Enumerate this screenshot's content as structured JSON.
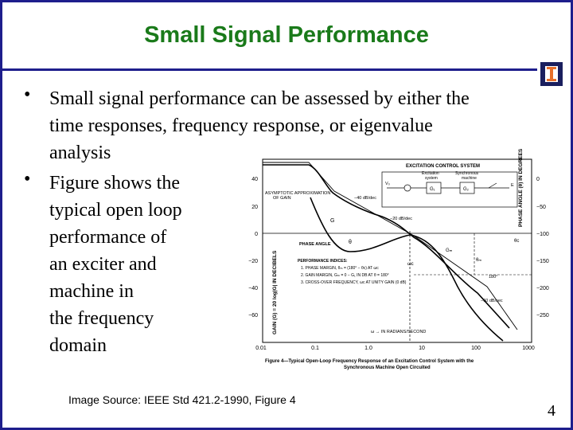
{
  "slide": {
    "title": "Small Signal Performance",
    "bullets": [
      {
        "lines": [
          "Small signal performance can be assessed by either the",
          "time responses, frequency response, or eigenvalue",
          "analysis"
        ]
      },
      {
        "lines": [
          "Figure shows the",
          "typical open loop",
          "performance of",
          "an exciter and",
          "machine in",
          "the frequency",
          "domain"
        ]
      }
    ],
    "source": "Image Source: IEEE Std 421.2-1990, Figure 4",
    "page_number": "4"
  },
  "figure": {
    "block_diagram": {
      "title": "EXCITATION CONTROL SYSTEM",
      "excitation_label": [
        "Excitation",
        "system"
      ],
      "machine_label": [
        "Synchronous",
        "machine"
      ],
      "input_label": "V₀",
      "output_label": "E",
      "g1": "G₁",
      "g2": "G₂"
    },
    "annotations": {
      "asymptotic": [
        "ASYMPTOTIC APPROXIMATION",
        "OF GAIN"
      ],
      "slope1": "−40 dB/dec",
      "slope2": "−20 dB/dec",
      "slope3": "−60 dB/sec",
      "phase_angle": "PHASE ANGLE",
      "theta": "θ",
      "g_label": "G",
      "gm": "Gₘ",
      "theta_m": "θₘ",
      "theta_c": "θc",
      "omega_c": "ωc",
      "deg180": "180°",
      "performance": [
        "PERFORMANCE INDICES:",
        "1. PHASE MARGIN,  θₘ = (180° − θc) AT ωc",
        "2. GAIN MARGIN,  Gₘ = 0 − G₁ IN DB AT θ = 180°",
        "3. CROSS-OVER FREQUENCY, ωc AT UNITY GAIN (0 dB)"
      ],
      "omega_units": "ω → IN RADIANS/SECOND",
      "left_axis": "GAIN (G) = 20 log|G| IN DECIBELS",
      "right_axis": "PHASE ANGLE (θ) IN DEGREES"
    },
    "left_ticks": [
      "40",
      "20",
      "0",
      "−20",
      "−40",
      "−60"
    ],
    "right_ticks": [
      "0",
      "−50",
      "−100",
      "−150",
      "−200",
      "−250"
    ],
    "x_ticks": [
      "0.01",
      "0.1",
      "1.0",
      "10",
      "100",
      "1000"
    ],
    "caption": [
      "Figure 4—Typical Open-Loop Frequency Response of an Excitation Control System with the",
      "Synchronous Machine Open Circuited"
    ]
  },
  "colors": {
    "title": "#1a7a1a",
    "border": "#1e1e8c",
    "logo_bg": "#1a1f5e",
    "logo_accent": "#e8702a"
  }
}
